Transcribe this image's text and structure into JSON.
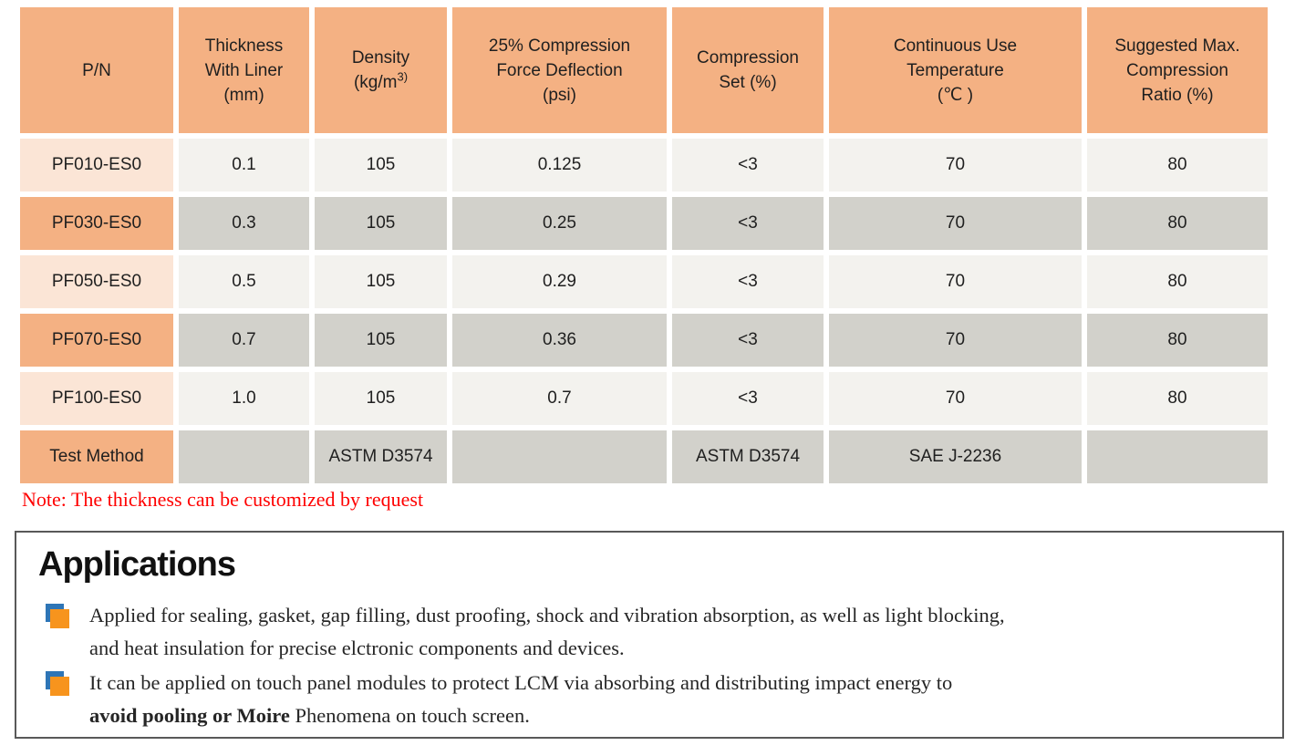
{
  "table": {
    "columns": [
      {
        "lines": [
          "P/N"
        ]
      },
      {
        "lines": [
          "Thickness",
          "With Liner",
          "(mm)"
        ]
      },
      {
        "lines": [
          "Density",
          "(kg/m"
        ],
        "sup": "3)"
      },
      {
        "lines": [
          "25% Compression",
          "Force Deflection",
          "(psi)"
        ]
      },
      {
        "lines": [
          "Compression",
          "Set (%)"
        ]
      },
      {
        "lines": [
          "Continuous Use",
          "Temperature",
          "(℃ )"
        ]
      },
      {
        "lines": [
          "Suggested Max.",
          "Compression",
          "Ratio (%)"
        ]
      }
    ],
    "rows": [
      {
        "pn": "PF010-ES0",
        "values": [
          "0.1",
          "105",
          "0.125",
          "<3",
          "70",
          "80"
        ]
      },
      {
        "pn": "PF030-ES0",
        "values": [
          "0.3",
          "105",
          "0.25",
          "<3",
          "70",
          "80"
        ]
      },
      {
        "pn": "PF050-ES0",
        "values": [
          "0.5",
          "105",
          "0.29",
          "<3",
          "70",
          "80"
        ]
      },
      {
        "pn": "PF070-ES0",
        "values": [
          "0.7",
          "105",
          "0.36",
          "<3",
          "70",
          "80"
        ]
      },
      {
        "pn": "PF100-ES0",
        "values": [
          "1.0",
          "105",
          "0.7",
          "<3",
          "70",
          "80"
        ]
      }
    ],
    "test_method": {
      "label": "Test Method",
      "values": [
        "",
        "ASTM D3574",
        "",
        "ASTM D3574",
        "SAE J-2236",
        ""
      ]
    }
  },
  "note": "Note: The thickness can be customized by request",
  "applications": {
    "title": "Applications",
    "items": [
      {
        "line1": "Applied for sealing, gasket, gap filling, dust proofing, shock and vibration absorption, as well as light blocking,",
        "line2": "and heat insulation for precise elctronic components and devices."
      },
      {
        "line1": "It can be applied on touch panel modules to protect LCM via absorbing and distributing impact energy to",
        "bold": "avoid pooling or Moire",
        "rest": " Phenomena on touch screen."
      }
    ]
  },
  "colors": {
    "header_orange": "#F4B183",
    "pn_peach": "#FBE5D6",
    "row_offwhite": "#F3F2EE",
    "row_gray": "#D2D1CB",
    "note_red": "#FF0000",
    "panel_border": "#595959",
    "bullet_orange": "#F7941D",
    "bullet_blue": "#2E75B6"
  }
}
